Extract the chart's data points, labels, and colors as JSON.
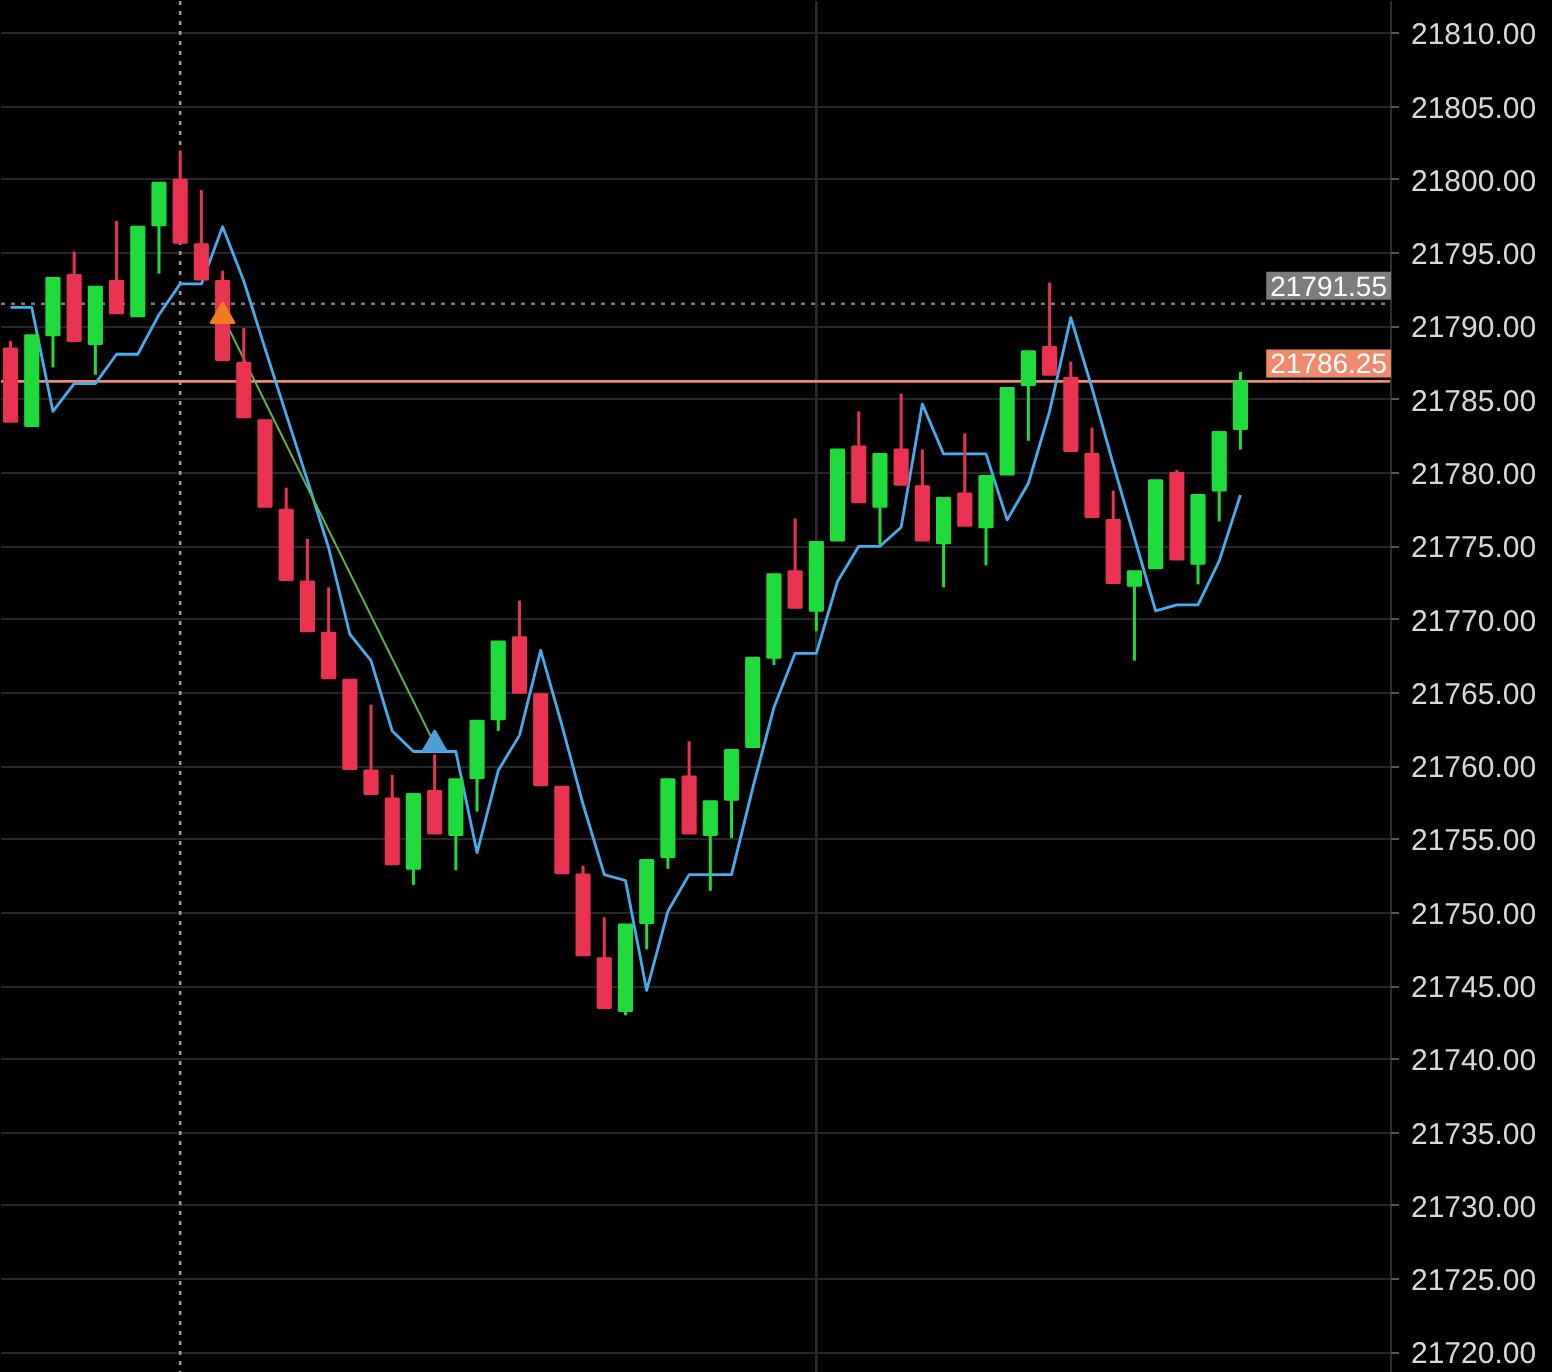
{
  "chart_data": {
    "type": "candlestick",
    "categories": [
      null,
      null,
      null,
      null,
      null,
      null,
      null,
      null,
      null,
      null,
      null,
      null,
      null,
      null,
      null,
      null,
      null,
      null,
      null,
      null,
      null,
      null,
      null,
      null,
      null,
      null,
      null,
      null,
      null,
      null,
      null,
      null,
      null,
      null,
      null,
      null,
      null,
      null,
      null,
      null,
      null,
      null,
      null,
      null,
      null,
      null,
      null,
      null,
      null,
      null,
      null,
      null,
      null,
      null,
      null,
      null,
      null,
      null,
      null
    ],
    "ohlc": [
      [
        21788.5,
        21789.0,
        21783.5,
        21783.5
      ],
      [
        21783.2,
        21789.4,
        21783.2,
        21789.4
      ],
      [
        21789.4,
        21793.3,
        21787.2,
        21793.3
      ],
      [
        21793.5,
        21795.1,
        21789.0,
        21789.0
      ],
      [
        21788.8,
        21792.7,
        21786.7,
        21792.7
      ],
      [
        21793.1,
        21797.2,
        21790.9,
        21790.9
      ],
      [
        21790.7,
        21796.8,
        21790.7,
        21796.8
      ],
      [
        21796.9,
        21799.8,
        21793.6,
        21799.8
      ],
      [
        21800.0,
        21802.0,
        21795.7,
        21795.7
      ],
      [
        21795.6,
        21799.3,
        21793.2,
        21793.2
      ],
      [
        21793.1,
        21793.8,
        21787.7,
        21787.7
      ],
      [
        21787.5,
        21789.9,
        21783.8,
        21783.8
      ],
      [
        21783.6,
        21783.6,
        21777.7,
        21777.7
      ],
      [
        21777.5,
        21779.0,
        21772.7,
        21772.7
      ],
      [
        21772.6,
        21775.5,
        21769.2,
        21769.2
      ],
      [
        21769.1,
        21772.2,
        21766.0,
        21766.0
      ],
      [
        21765.9,
        21765.9,
        21759.8,
        21759.8
      ],
      [
        21759.7,
        21764.2,
        21758.1,
        21758.1
      ],
      [
        21757.8,
        21759.4,
        21753.3,
        21753.3
      ],
      [
        21753.0,
        21758.1,
        21751.9,
        21758.1
      ],
      [
        21758.3,
        21760.8,
        21755.4,
        21755.4
      ],
      [
        21755.3,
        21759.1,
        21752.9,
        21759.1
      ],
      [
        21759.2,
        21763.1,
        21756.9,
        21763.1
      ],
      [
        21763.2,
        21768.5,
        21762.4,
        21768.5
      ],
      [
        21768.8,
        21771.3,
        21765.0,
        21765.0
      ],
      [
        21764.9,
        21764.9,
        21758.7,
        21758.7
      ],
      [
        21758.6,
        21758.6,
        21752.7,
        21752.7
      ],
      [
        21752.6,
        21753.2,
        21747.1,
        21747.1
      ],
      [
        21746.9,
        21749.7,
        21743.5,
        21743.5
      ],
      [
        21743.3,
        21749.2,
        21743.0,
        21749.2
      ],
      [
        21749.3,
        21753.6,
        21747.5,
        21753.6
      ],
      [
        21753.8,
        21759.1,
        21753.0,
        21759.1
      ],
      [
        21759.3,
        21761.7,
        21755.4,
        21755.4
      ],
      [
        21755.3,
        21757.6,
        21751.5,
        21757.6
      ],
      [
        21757.7,
        21761.1,
        21755.1,
        21761.1
      ],
      [
        21761.3,
        21767.4,
        21761.3,
        21767.4
      ],
      [
        21767.4,
        21773.1,
        21766.9,
        21773.1
      ],
      [
        21773.3,
        21776.9,
        21770.8,
        21770.8
      ],
      [
        21770.6,
        21775.3,
        21769.2,
        21775.3
      ],
      [
        21775.4,
        21781.6,
        21775.4,
        21781.6
      ],
      [
        21781.8,
        21784.2,
        21778.0,
        21778.0
      ],
      [
        21777.7,
        21781.3,
        21775.1,
        21781.3
      ],
      [
        21781.6,
        21785.4,
        21779.2,
        21779.2
      ],
      [
        21779.1,
        21781.6,
        21775.4,
        21775.4
      ],
      [
        21775.2,
        21778.3,
        21772.2,
        21778.3
      ],
      [
        21778.6,
        21782.7,
        21776.4,
        21776.4
      ],
      [
        21776.3,
        21779.8,
        21773.7,
        21779.8
      ],
      [
        21779.9,
        21785.8,
        21779.9,
        21785.8
      ],
      [
        21786.0,
        21788.3,
        21782.2,
        21788.3
      ],
      [
        21788.6,
        21793.0,
        21786.7,
        21786.7
      ],
      [
        21786.5,
        21787.6,
        21781.5,
        21781.5
      ],
      [
        21781.3,
        21783.1,
        21777.0,
        21777.0
      ],
      [
        21776.8,
        21778.8,
        21772.5,
        21772.5
      ],
      [
        21772.3,
        21773.3,
        21767.2,
        21773.3
      ],
      [
        21773.5,
        21779.5,
        21773.5,
        21779.5
      ],
      [
        21780.0,
        21780.2,
        21774.1,
        21774.1
      ],
      [
        21773.8,
        21778.5,
        21772.4,
        21778.5
      ],
      [
        21778.8,
        21782.8,
        21776.7,
        21782.8
      ],
      [
        21783.0,
        21786.9,
        21781.6,
        21786.25
      ]
    ],
    "colors": [
      "#ea3350",
      "#1fdc3c",
      "#1fdc3c",
      "#ea3350",
      "#1fdc3c",
      "#ea3350",
      "#1fdc3c",
      "#1fdc3c",
      "#ea3350",
      "#ea3350",
      "#ea3350",
      "#ea3350",
      "#ea3350",
      "#ea3350",
      "#ea3350",
      "#ea3350",
      "#ea3350",
      "#ea3350",
      "#ea3350",
      "#1fdc3c",
      "#ea3350",
      "#1fdc3c",
      "#1fdc3c",
      "#1fdc3c",
      "#ea3350",
      "#ea3350",
      "#ea3350",
      "#ea3350",
      "#ea3350",
      "#1fdc3c",
      "#1fdc3c",
      "#1fdc3c",
      "#ea3350",
      "#1fdc3c",
      "#1fdc3c",
      "#1fdc3c",
      "#1fdc3c",
      "#ea3350",
      "#1fdc3c",
      "#1fdc3c",
      "#ea3350",
      "#1fdc3c",
      "#ea3350",
      "#ea3350",
      "#1fdc3c",
      "#ea3350",
      "#1fdc3c",
      "#1fdc3c",
      "#1fdc3c",
      "#ea3350",
      "#ea3350",
      "#ea3350",
      "#ea3350",
      "#1fdc3c",
      "#1fdc3c",
      "#ea3350",
      "#1fdc3c",
      "#1fdc3c",
      "#1fdc3c"
    ],
    "series": [
      {
        "type": "line",
        "color": "#45aef0",
        "values": [
          21791.3,
          21791.3,
          21784.2,
          21786.1,
          21786.1,
          21788.1,
          21788.1,
          21790.8,
          21792.9,
          21792.9,
          21796.8,
          21793.1,
          21788.5,
          21784.0,
          21779.5,
          21774.9,
          21769.0,
          21767.2,
          21762.4,
          21761.0,
          21761.0,
          21761.0,
          21754.1,
          21759.7,
          21762.1,
          21767.9,
          21762.8,
          21757.4,
          21752.6,
          21752.2,
          21744.7,
          21750.1,
          21752.6,
          21752.6,
          21752.6,
          21758.5,
          21764.0,
          21767.7,
          21767.7,
          21772.6,
          21775.0,
          21775.0,
          21776.3,
          21784.7,
          21781.3,
          21781.3,
          21781.3,
          21776.8,
          21779.3,
          21784.2,
          21790.6,
          21785.8,
          21780.6,
          21775.6,
          21770.6,
          21771.0,
          21771.0,
          21774.0,
          21778.5
        ]
      },
      {
        "type": "line",
        "color": "#5fb84a",
        "values": [
          null,
          null,
          null,
          null,
          null,
          null,
          null,
          null,
          null,
          null,
          21790.7,
          null,
          null,
          null,
          null,
          null,
          null,
          null,
          null,
          null,
          21761.5,
          null,
          null,
          null,
          null,
          null,
          null,
          null,
          null,
          null,
          null,
          null,
          null,
          null,
          null,
          null,
          null,
          null,
          null,
          null,
          null,
          null,
          null,
          null,
          null,
          null,
          null,
          null,
          null,
          null,
          null,
          null,
          null,
          null,
          null,
          null,
          null,
          null,
          null
        ]
      },
      {
        "type": "scatter",
        "color": "#f27a22",
        "marker": "triangle",
        "values": [
          null,
          null,
          null,
          null,
          null,
          null,
          null,
          null,
          null,
          null,
          21790.7,
          null,
          null,
          null,
          null,
          null,
          null,
          null,
          null,
          null,
          null,
          null,
          null,
          null,
          null,
          null,
          null,
          null,
          null,
          null,
          null,
          null,
          null,
          null,
          null,
          null,
          null,
          null,
          null,
          null,
          null,
          null,
          null,
          null,
          null,
          null,
          null,
          null,
          null,
          null,
          null,
          null,
          null,
          null,
          null,
          null,
          null,
          null,
          null
        ]
      },
      {
        "type": "scatter",
        "color": "#4f9fd6",
        "marker": "triangle",
        "values": [
          null,
          null,
          null,
          null,
          null,
          null,
          null,
          null,
          null,
          null,
          null,
          null,
          null,
          null,
          null,
          null,
          null,
          null,
          null,
          null,
          21761.5,
          null,
          null,
          null,
          null,
          null,
          null,
          null,
          null,
          null,
          null,
          null,
          null,
          null,
          null,
          null,
          null,
          null,
          null,
          null,
          null,
          null,
          null,
          null,
          null,
          null,
          null,
          null,
          null,
          null,
          null,
          null,
          null,
          null,
          null,
          null,
          null,
          null,
          null
        ]
      }
    ],
    "ylim": [
      21718.6,
      21812.2
    ],
    "yticks": [
      {
        "value": 21720,
        "label": "21720.00"
      },
      {
        "value": 21725,
        "label": "21725.00"
      },
      {
        "value": 21730,
        "label": "21730.00"
      },
      {
        "value": 21735,
        "label": "21735.00"
      },
      {
        "value": 21740,
        "label": "21740.00"
      },
      {
        "value": 21745,
        "label": "21745.00"
      },
      {
        "value": 21750,
        "label": "21750.00"
      },
      {
        "value": 21755,
        "label": "21755.00"
      },
      {
        "value": 21760,
        "label": "21760.00"
      },
      {
        "value": 21765,
        "label": "21765.00"
      },
      {
        "value": 21770,
        "label": "21770.00"
      },
      {
        "value": 21775,
        "label": "21775.00"
      },
      {
        "value": 21780,
        "label": "21780.00"
      },
      {
        "value": 21785,
        "label": "21785.00"
      },
      {
        "value": 21790,
        "label": "21790.00"
      },
      {
        "value": 21795,
        "label": "21795.00"
      },
      {
        "value": 21800,
        "label": "21800.00"
      },
      {
        "value": 21805,
        "label": "21805.00"
      },
      {
        "value": 21810,
        "label": "21810.00"
      }
    ],
    "ref_lines": [
      {
        "axis": "y",
        "value": 21791.55,
        "label": "21791.55",
        "color": "#7d7d7d",
        "line_style": "dotted"
      },
      {
        "axis": "y",
        "value": 21786.25,
        "label": "21786.25",
        "color": "#ef8a6c",
        "line_style": "solid"
      }
    ],
    "grid": "y",
    "tick_labels": "y"
  }
}
